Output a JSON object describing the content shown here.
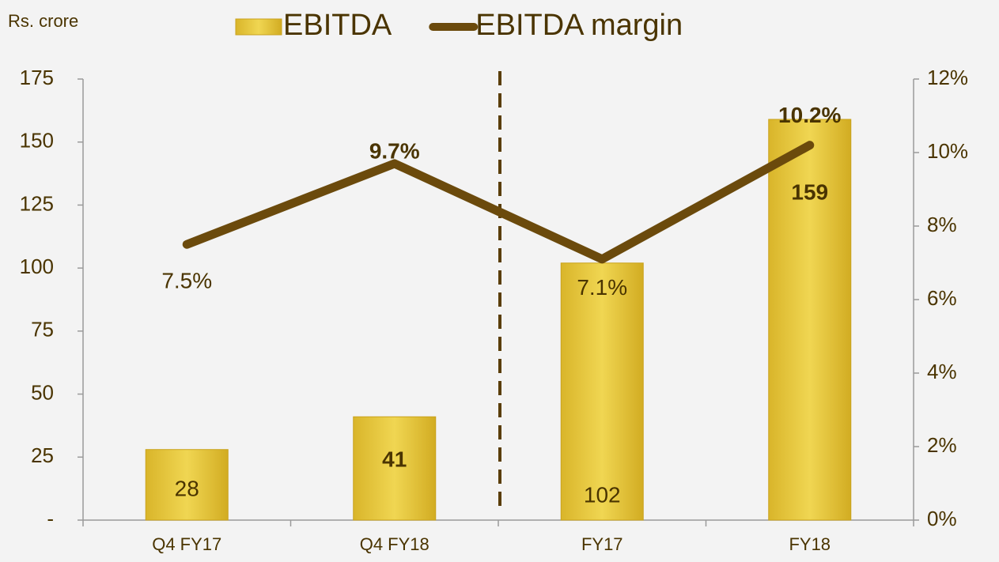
{
  "chart_data": {
    "type": "bar_line",
    "y_label": "Rs. crore",
    "categories": [
      "Q4 FY17",
      "Q4 FY18",
      "FY17",
      "FY18"
    ],
    "series": [
      {
        "name": "EBITDA",
        "type": "bar",
        "color": "#e8c83c",
        "values": [
          28,
          41,
          102,
          159
        ]
      },
      {
        "name": "EBITDA margin",
        "type": "line",
        "axis": "y2",
        "color": "#6b4a0c",
        "values": [
          7.5,
          9.7,
          7.1,
          10.2
        ],
        "value_labels": [
          "7.5%",
          "9.7%",
          "7.1%",
          "10.2%"
        ]
      }
    ],
    "ylim": [
      0,
      175
    ],
    "yticks": [
      {
        "value": 0,
        "label": "-"
      },
      25,
      50,
      75,
      100,
      125,
      150,
      175
    ],
    "y2lim": [
      0,
      12
    ],
    "y2ticks": [
      {
        "value": 0,
        "label": "0%"
      },
      {
        "value": 2,
        "label": "2%"
      },
      {
        "value": 4,
        "label": "4%"
      },
      {
        "value": 6,
        "label": "6%"
      },
      {
        "value": 8,
        "label": "8%"
      },
      {
        "value": 10,
        "label": "10%"
      },
      {
        "value": 12,
        "label": "12%"
      }
    ],
    "legend": "top"
  }
}
